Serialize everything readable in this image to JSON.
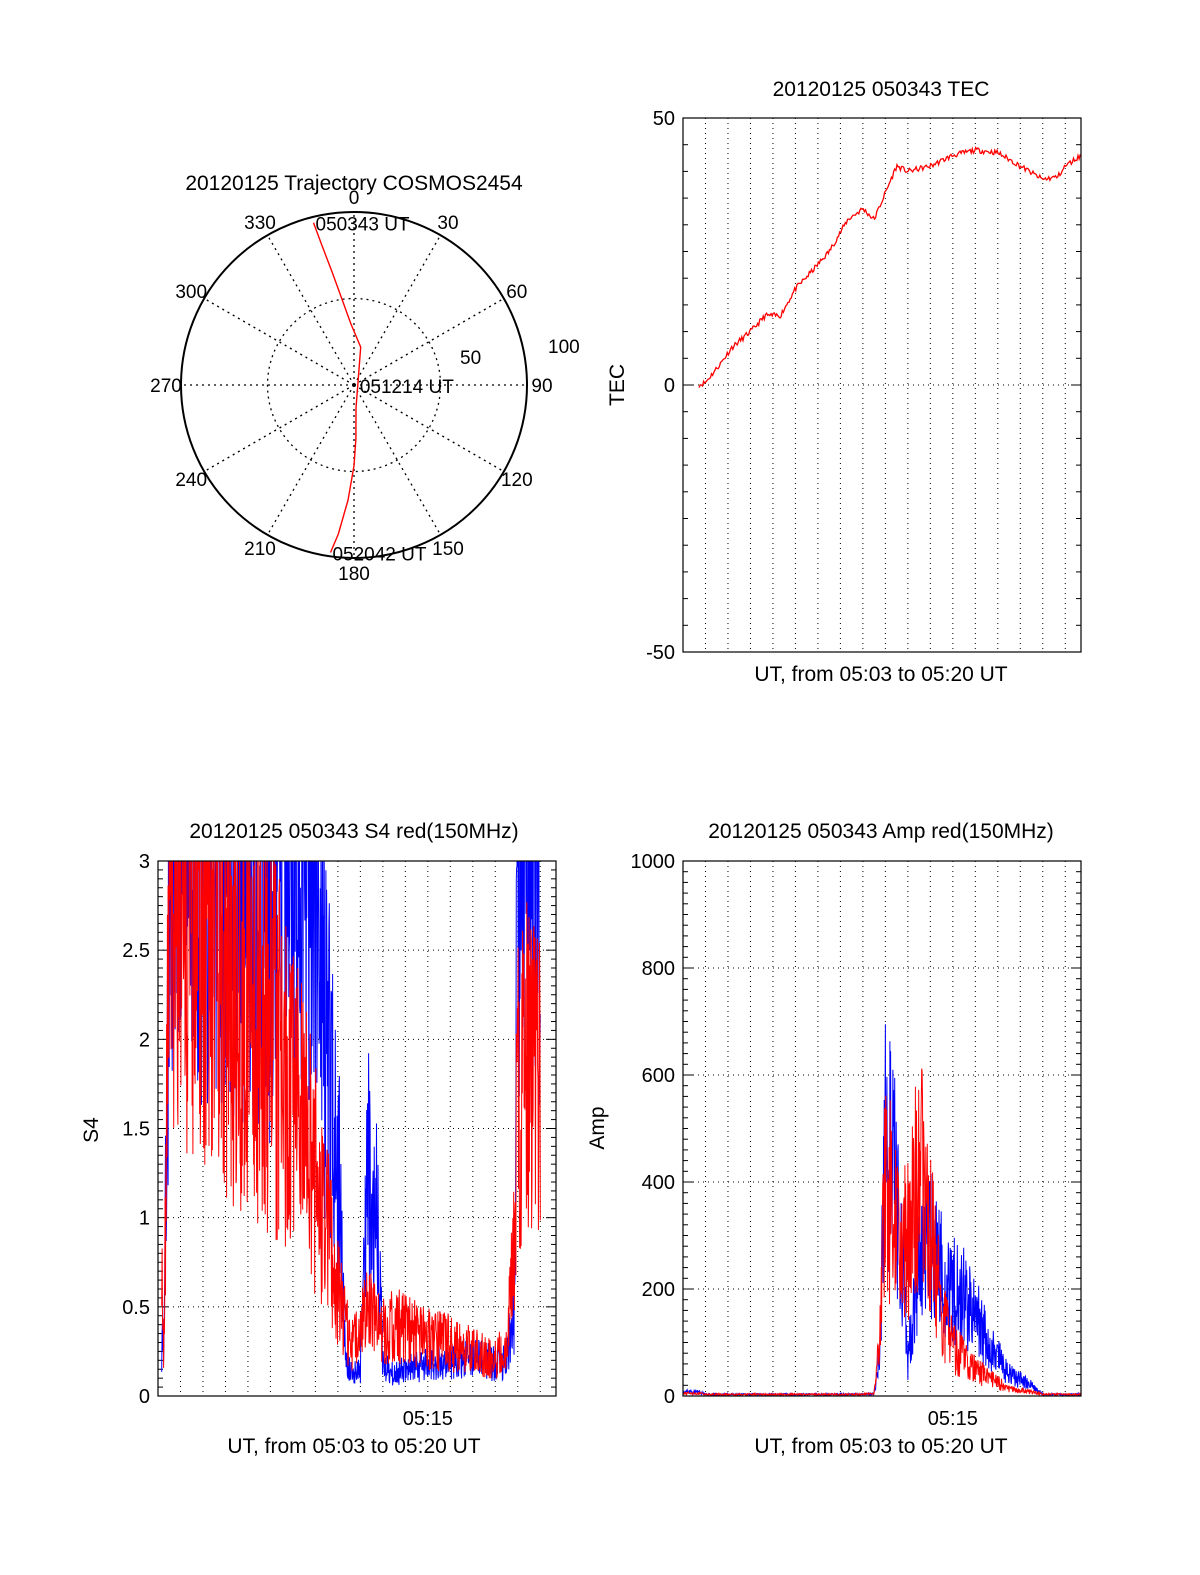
{
  "chart_data": [
    {
      "type": "polar",
      "title": "20120125 Trajectory COSMOS2454",
      "angle_labels": [
        "0",
        "30",
        "60",
        "90",
        "120",
        "150",
        "180",
        "210",
        "240",
        "270",
        "300",
        "330"
      ],
      "radius_labels": [
        "50",
        "100"
      ],
      "radial_axis": "elevation",
      "rlim": [
        0,
        90
      ],
      "ring_values": [
        50,
        100
      ],
      "grid": true,
      "series": [
        {
          "color": "#ff0000",
          "points_az_el": [
            [
              346,
              3
            ],
            [
              347,
              15
            ],
            [
              349,
              30
            ],
            [
              352,
              45
            ],
            [
              357,
              58
            ],
            [
              10,
              70
            ],
            [
              90,
              88
            ],
            [
              175,
              78
            ],
            [
              178,
              62
            ],
            [
              180,
              48
            ],
            [
              183,
              30
            ],
            [
              186,
              12
            ],
            [
              188,
              2
            ]
          ]
        }
      ],
      "annotations": [
        {
          "text": "050343 UT",
          "az": 346,
          "el": 3
        },
        {
          "text": "051214 UT",
          "az": 90,
          "el": 88
        },
        {
          "text": "052042 UT",
          "az": 188,
          "el": 2
        }
      ]
    },
    {
      "type": "line",
      "title": "20120125 050343 TEC",
      "xlabel": "UT, from 05:03 to 05:20 UT",
      "ylabel": "TEC",
      "xlim": [
        "05:03:00",
        "05:20:42"
      ],
      "ylim": [
        -50,
        50
      ],
      "yticks": [
        "-50",
        "0",
        "50"
      ],
      "grid": true,
      "series": [
        {
          "color": "#ff0000",
          "x": [
            "05:03:43",
            "05:04:00",
            "05:04:40",
            "05:05:10",
            "05:06:00",
            "05:06:40",
            "05:07:20",
            "05:08:00",
            "05:08:40",
            "05:09:30",
            "05:10:20",
            "05:11:00",
            "05:11:30",
            "05:12:00",
            "05:12:30",
            "05:13:00",
            "05:14:00",
            "05:15:00",
            "05:16:00",
            "05:17:00",
            "05:18:00",
            "05:19:00",
            "05:19:40",
            "05:20:00",
            "05:20:42"
          ],
          "y": [
            0,
            0.5,
            4,
            7,
            10,
            13,
            13,
            18,
            21,
            25,
            31,
            33,
            31,
            36,
            41,
            40,
            41,
            43,
            44,
            43.5,
            41,
            38.5,
            39,
            41,
            43
          ]
        }
      ]
    },
    {
      "type": "line",
      "title": "20120125 050343 S4 red(150MHz)",
      "xlabel": "UT, from 05:03 to 05:20 UT",
      "ylabel": "S4",
      "xlim": [
        "05:03:00",
        "05:20:42"
      ],
      "xticks": [
        "05:15"
      ],
      "ylim": [
        0,
        3
      ],
      "yticks": [
        "0",
        "0.5",
        "1",
        "1.5",
        "2",
        "2.5",
        "3"
      ],
      "grid": true,
      "series": [
        {
          "color": "#0000ff",
          "x": [
            "05:03:10",
            "05:03:15",
            "05:03:20",
            "05:03:30",
            "05:04:00",
            "05:05:00",
            "05:06:00",
            "05:07:00",
            "05:08:00",
            "05:09:00",
            "05:10:00",
            "05:10:30",
            "05:11:00",
            "05:11:20",
            "05:11:40",
            "05:12:00",
            "05:12:20",
            "05:12:40",
            "05:13:00",
            "05:13:30",
            "05:14:00",
            "05:15:00",
            "05:16:00",
            "05:17:00",
            "05:18:00",
            "05:18:30",
            "05:18:50",
            "05:19:00",
            "05:20:00"
          ],
          "y": [
            0.3,
            0.35,
            1,
            3,
            3,
            3,
            3,
            2.9,
            2.8,
            2.9,
            3,
            2,
            1.4,
            0.2,
            0.12,
            0.15,
            1.3,
            1.2,
            0.2,
            0.12,
            0.15,
            0.18,
            0.2,
            0.22,
            0.18,
            0.2,
            0.5,
            3,
            3
          ]
        },
        {
          "color": "#ff0000",
          "x": [
            "05:03:10",
            "05:03:15",
            "05:03:20",
            "05:03:30",
            "05:04:00",
            "05:05:00",
            "05:06:00",
            "05:07:00",
            "05:08:00",
            "05:09:00",
            "05:10:00",
            "05:10:30",
            "05:11:00",
            "05:11:20",
            "05:11:40",
            "05:12:00",
            "05:12:20",
            "05:12:40",
            "05:13:00",
            "05:13:30",
            "05:14:00",
            "05:15:00",
            "05:16:00",
            "05:17:00",
            "05:18:00",
            "05:18:30",
            "05:18:50",
            "05:19:00",
            "05:20:00"
          ],
          "y": [
            0.6,
            0.35,
            0.9,
            2.9,
            2.8,
            2.6,
            2.4,
            2.2,
            2.0,
            1.7,
            1.2,
            1.0,
            0.6,
            0.4,
            0.3,
            0.35,
            0.5,
            0.4,
            0.35,
            0.4,
            0.38,
            0.32,
            0.3,
            0.25,
            0.2,
            0.3,
            0.8,
            1.8,
            1.9
          ]
        }
      ]
    },
    {
      "type": "line",
      "title": "20120125 050343 Amp red(150MHz)",
      "xlabel": "UT, from 05:03 to 05:20 UT",
      "ylabel": "Amp",
      "xlim": [
        "05:03:00",
        "05:20:42"
      ],
      "xticks": [
        "05:15"
      ],
      "ylim": [
        0,
        1000
      ],
      "yticks": [
        "0",
        "200",
        "400",
        "600",
        "800",
        "1000"
      ],
      "grid": true,
      "series": [
        {
          "color": "#0000ff",
          "x": [
            "05:03:00",
            "05:03:40",
            "05:04:00",
            "05:05:00",
            "05:06:00",
            "05:07:00",
            "05:08:00",
            "05:09:00",
            "05:10:00",
            "05:11:00",
            "05:11:30",
            "05:11:45",
            "05:12:00",
            "05:12:20",
            "05:12:40",
            "05:13:00",
            "05:13:20",
            "05:13:40",
            "05:14:00",
            "05:14:30",
            "05:15:00",
            "05:15:30",
            "05:16:00",
            "05:16:30",
            "05:17:00",
            "05:17:30",
            "05:18:00",
            "05:18:30",
            "05:19:00",
            "05:20:42"
          ],
          "y": [
            8,
            8,
            3,
            3,
            3,
            3,
            3,
            3,
            3,
            3,
            5,
            80,
            480,
            420,
            300,
            60,
            220,
            240,
            280,
            230,
            200,
            180,
            150,
            100,
            70,
            40,
            30,
            20,
            3,
            3
          ]
        },
        {
          "color": "#ff0000",
          "x": [
            "05:03:00",
            "05:03:40",
            "05:04:00",
            "05:05:00",
            "05:06:00",
            "05:07:00",
            "05:08:00",
            "05:09:00",
            "05:10:00",
            "05:11:00",
            "05:11:30",
            "05:11:45",
            "05:12:00",
            "05:12:20",
            "05:12:40",
            "05:13:00",
            "05:13:20",
            "05:13:40",
            "05:14:00",
            "05:14:30",
            "05:15:00",
            "05:15:30",
            "05:16:00",
            "05:16:30",
            "05:17:00",
            "05:17:30",
            "05:18:00",
            "05:18:30",
            "05:19:00",
            "05:20:42"
          ],
          "y": [
            5,
            5,
            3,
            3,
            3,
            3,
            3,
            3,
            3,
            3,
            5,
            100,
            400,
            350,
            250,
            300,
            380,
            400,
            300,
            150,
            90,
            70,
            50,
            35,
            25,
            15,
            10,
            8,
            3,
            3
          ]
        }
      ]
    }
  ]
}
